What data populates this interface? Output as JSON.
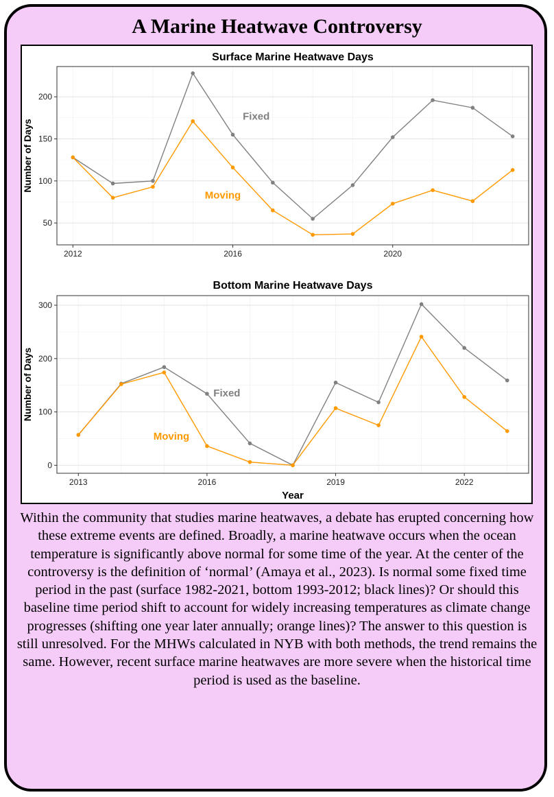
{
  "poster": {
    "title": "A Marine Heatwave Controversy",
    "body": "Within the community that studies marine heatwaves, a debate has erupted concerning how these extreme events are defined.  Broadly, a marine heatwave occurs when the ocean temperature is significantly above normal for some time of the year.  At the center of the controversy is the definition of ‘normal’ (Amaya et al., 2023).  Is normal some fixed time period in the past (surface 1982-2021, bottom 1993-2012; black lines)?  Or should this baseline time period shift to account for widely increasing temperatures as climate change progresses (shifting one year later annually; orange lines)?  The answer to this question is still unresolved.  For the MHWs calculated in NYB with both methods, the trend remains the same.  However, recent surface marine heatwaves are more severe when the historical time period is used as the baseline."
  },
  "colors": {
    "fixed": "#808080",
    "moving": "#ff9900",
    "background": "#f5ccf8"
  },
  "chart_data": [
    {
      "type": "line",
      "title": "Surface Marine Heatwave Days",
      "xlabel": "",
      "ylabel": "Number of Days",
      "x": [
        2012,
        2013,
        2014,
        2015,
        2016,
        2017,
        2018,
        2019,
        2020,
        2021,
        2022,
        2023
      ],
      "xticks": [
        2012,
        2016,
        2020
      ],
      "yticks": [
        50,
        100,
        150,
        200
      ],
      "xlim": [
        2011.6,
        2023.4
      ],
      "ylim": [
        24,
        236
      ],
      "grid": true,
      "series": [
        {
          "name": "Fixed",
          "color": "#808080",
          "values": [
            128,
            97,
            100,
            228,
            155,
            98,
            55,
            95,
            152,
            196,
            187,
            153
          ]
        },
        {
          "name": "Moving",
          "color": "#ff9900",
          "values": [
            128,
            80,
            93,
            171,
            116,
            65,
            36,
            37,
            73,
            89,
            76,
            113
          ]
        }
      ],
      "annotations": [
        {
          "text": "Fixed",
          "x": 2016.25,
          "y": 173,
          "color": "#808080"
        },
        {
          "text": "Moving",
          "x": 2015.3,
          "y": 79,
          "color": "#ff9900"
        }
      ]
    },
    {
      "type": "line",
      "title": "Bottom Marine Heatwave Days",
      "xlabel": "Year",
      "ylabel": "Number of Days",
      "x": [
        2013,
        2014,
        2015,
        2016,
        2017,
        2018,
        2019,
        2020,
        2021,
        2022,
        2023
      ],
      "xticks": [
        2013,
        2016,
        2019,
        2022
      ],
      "yticks": [
        0,
        100,
        200,
        300
      ],
      "xlim": [
        2012.5,
        2023.5
      ],
      "ylim": [
        -15,
        318
      ],
      "grid": true,
      "series": [
        {
          "name": "Fixed",
          "color": "#808080",
          "values": [
            57,
            153,
            184,
            134,
            41,
            0,
            155,
            118,
            302,
            220,
            159
          ]
        },
        {
          "name": "Moving",
          "color": "#ff9900",
          "values": [
            57,
            152,
            174,
            36,
            6,
            0,
            107,
            75,
            241,
            128,
            64
          ]
        }
      ],
      "annotations": [
        {
          "text": "Fixed",
          "x": 2016.15,
          "y": 129,
          "color": "#808080"
        },
        {
          "text": "Moving",
          "x": 2014.75,
          "y": 48,
          "color": "#ff9900"
        }
      ]
    }
  ]
}
